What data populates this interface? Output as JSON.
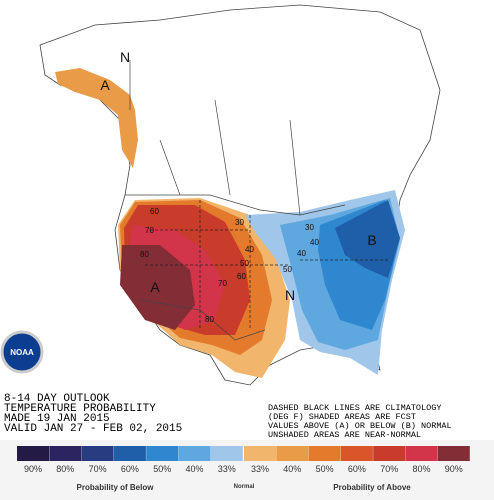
{
  "map": {
    "region_letters": [
      "N",
      "A",
      "A",
      "B",
      "N"
    ],
    "contour_labels": [
      "60",
      "70",
      "80",
      "30",
      "40",
      "50",
      "60",
      "70",
      "80",
      "40",
      "50",
      "30",
      "40"
    ]
  },
  "logo": "NOAA",
  "outlook": {
    "lines": [
      "8-14 DAY OUTLOOK",
      "TEMPERATURE PROBABILITY",
      "MADE  19 JAN 2015",
      "VALID  JAN 27 - FEB 02, 2015"
    ]
  },
  "note": {
    "lines": [
      "DASHED BLACK LINES ARE CLIMATOLOGY",
      "(DEG F) SHADED AREAS ARE FCST",
      "VALUES ABOVE (A) OR BELOW (B) NORMAL",
      "UNSHADED AREAS ARE NEAR-NORMAL"
    ]
  },
  "legend": {
    "below": [
      {
        "label": "90%",
        "color": "#231a46"
      },
      {
        "label": "80%",
        "color": "#2c2460"
      },
      {
        "label": "70%",
        "color": "#283c82"
      },
      {
        "label": "60%",
        "color": "#1f5ea8"
      },
      {
        "label": "50%",
        "color": "#2f88cf"
      },
      {
        "label": "40%",
        "color": "#5ea8df"
      },
      {
        "label": "33%",
        "color": "#a0c6ea"
      }
    ],
    "normal_color": "#ffffff",
    "above": [
      {
        "label": "33%",
        "color": "#f1b56b"
      },
      {
        "label": "40%",
        "color": "#e99b47"
      },
      {
        "label": "50%",
        "color": "#e47b2c"
      },
      {
        "label": "60%",
        "color": "#da552a"
      },
      {
        "label": "70%",
        "color": "#c93b2b"
      },
      {
        "label": "80%",
        "color": "#d2354a"
      },
      {
        "label": "90%",
        "color": "#832d36"
      }
    ],
    "below_title": "Probability of Below",
    "normal_title": "Normal",
    "above_title": "Probability of Above"
  }
}
